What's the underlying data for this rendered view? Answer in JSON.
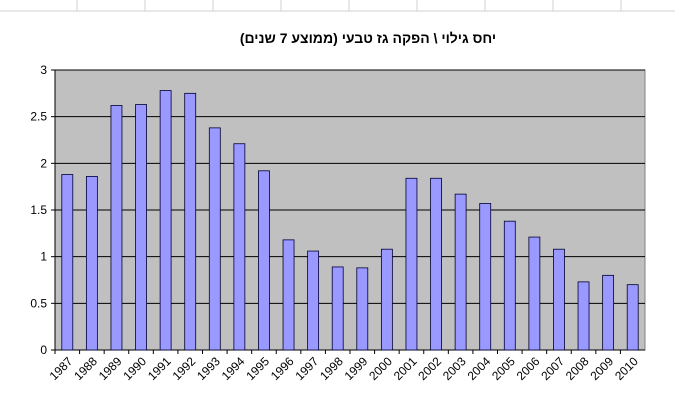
{
  "chart_data": {
    "type": "bar",
    "title": "יחס גילוי \\ הפקה גז טבעי (ממוצע 7 שנים)",
    "categories": [
      "1987",
      "1988",
      "1989",
      "1990",
      "1991",
      "1992",
      "1993",
      "1994",
      "1995",
      "1996",
      "1997",
      "1998",
      "1999",
      "2000",
      "2001",
      "2002",
      "2003",
      "2004",
      "2005",
      "2006",
      "2007",
      "2008",
      "2009",
      "2010"
    ],
    "values": [
      1.88,
      1.86,
      2.62,
      2.63,
      2.78,
      2.75,
      2.38,
      2.21,
      1.92,
      1.18,
      1.06,
      0.89,
      0.88,
      1.08,
      1.84,
      1.84,
      1.67,
      1.57,
      1.38,
      1.21,
      1.08,
      0.73,
      0.8,
      0.7
    ],
    "color": "#9999ff",
    "ylim": [
      0,
      3
    ],
    "yticks": [
      0,
      0.5,
      1,
      1.5,
      2,
      2.5,
      3
    ],
    "grid": true
  }
}
